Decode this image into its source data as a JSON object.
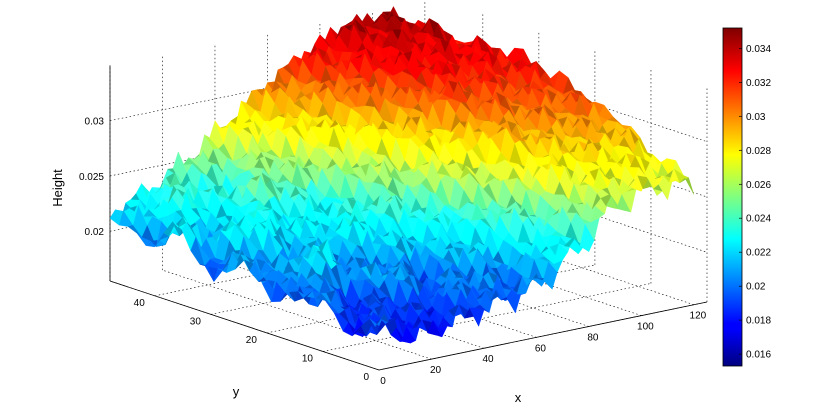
{
  "chart_data": {
    "type": "surface",
    "title": "",
    "xlabel": "x",
    "ylabel": "y",
    "zlabel": "Height",
    "x_ticks": [
      0,
      20,
      40,
      60,
      80,
      100,
      120
    ],
    "y_ticks": [
      0,
      10,
      20,
      30,
      40
    ],
    "z_ticks": [
      0.02,
      0.025,
      0.03
    ],
    "x_tick_labels": [
      "0",
      "20",
      "40",
      "60",
      "80",
      "100",
      "120"
    ],
    "y_tick_labels": [
      "0",
      "10",
      "20",
      "30",
      "40"
    ],
    "z_tick_labels": [
      "0.02",
      "0.025",
      "0.03"
    ],
    "xlim": [
      0,
      125
    ],
    "ylim": [
      0,
      48
    ],
    "zlim": [
      0.0155,
      0.035
    ],
    "grid": true,
    "colormap": "jet",
    "colorbar": {
      "range": [
        0.0153,
        0.0352
      ],
      "ticks": [
        0.016,
        0.018,
        0.02,
        0.022,
        0.024,
        0.026,
        0.028,
        0.03,
        0.032,
        0.034
      ],
      "tick_labels": [
        "0.016",
        "0.018",
        "0.02",
        "0.022",
        "0.024",
        "0.026",
        "0.028",
        "0.03",
        "0.032",
        "0.034"
      ],
      "location": "right"
    },
    "surface": {
      "x": [
        0,
        15,
        30,
        45,
        60,
        75,
        90,
        105,
        120
      ],
      "y": [
        0,
        6,
        12,
        18,
        24,
        30,
        36,
        42,
        48
      ],
      "z": [
        [
          0.0195,
          0.0178,
          0.0186,
          0.0192,
          0.0201,
          0.0225,
          0.0258,
          0.0268,
          0.0265
        ],
        [
          0.0182,
          0.019,
          0.0184,
          0.0205,
          0.0193,
          0.0232,
          0.0269,
          0.0279,
          0.0276
        ],
        [
          0.0206,
          0.0184,
          0.0211,
          0.019,
          0.0219,
          0.0246,
          0.0282,
          0.0291,
          0.0296
        ],
        [
          0.0188,
          0.0224,
          0.0196,
          0.0213,
          0.0228,
          0.0262,
          0.0296,
          0.0303,
          0.0309
        ],
        [
          0.0212,
          0.0197,
          0.0216,
          0.0232,
          0.0246,
          0.0279,
          0.0309,
          0.0312,
          0.0318
        ],
        [
          0.0192,
          0.0232,
          0.0223,
          0.0229,
          0.0262,
          0.0296,
          0.032,
          0.0322,
          0.0326
        ],
        [
          0.0223,
          0.0205,
          0.0246,
          0.0251,
          0.0281,
          0.0309,
          0.0329,
          0.0331,
          0.0325
        ],
        [
          0.0199,
          0.0241,
          0.0226,
          0.0264,
          0.0293,
          0.0318,
          0.0337,
          0.0341,
          0.0322
        ],
        [
          0.0216,
          0.023,
          0.0253,
          0.0278,
          0.0304,
          0.0326,
          0.0344,
          0.0345,
          0.0318
        ]
      ]
    }
  }
}
